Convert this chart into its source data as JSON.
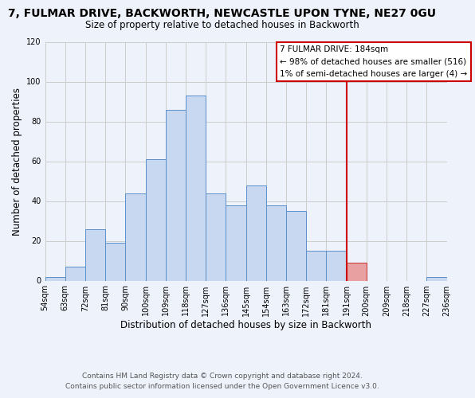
{
  "title": "7, FULMAR DRIVE, BACKWORTH, NEWCASTLE UPON TYNE, NE27 0GU",
  "subtitle": "Size of property relative to detached houses in Backworth",
  "xlabel": "Distribution of detached houses by size in Backworth",
  "ylabel": "Number of detached properties",
  "bar_labels": [
    "54sqm",
    "63sqm",
    "72sqm",
    "81sqm",
    "90sqm",
    "100sqm",
    "109sqm",
    "118sqm",
    "127sqm",
    "136sqm",
    "145sqm",
    "154sqm",
    "163sqm",
    "172sqm",
    "181sqm",
    "191sqm",
    "200sqm",
    "209sqm",
    "218sqm",
    "227sqm",
    "236sqm"
  ],
  "bar_values": [
    2,
    7,
    26,
    19,
    44,
    61,
    86,
    93,
    44,
    38,
    48,
    38,
    35,
    15,
    15,
    9,
    0,
    0,
    0,
    2
  ],
  "bar_color": "#c8d8f0",
  "bar_edge_color": "#5b8fc9",
  "highlight_bar_color": "#e8a0a0",
  "highlight_bar_edge_color": "#c83030",
  "highlight_bar_index": 15,
  "vline_color": "#cc0000",
  "vline_x": 15.0,
  "ylim": [
    0,
    120
  ],
  "yticks": [
    0,
    20,
    40,
    60,
    80,
    100,
    120
  ],
  "grid_color": "#cccccc",
  "background_color": "#eef2fb",
  "annotation_title": "7 FULMAR DRIVE: 184sqm",
  "annotation_line1": "← 98% of detached houses are smaller (516)",
  "annotation_line2": "1% of semi-detached houses are larger (4) →",
  "footer1": "Contains HM Land Registry data © Crown copyright and database right 2024.",
  "footer2": "Contains public sector information licensed under the Open Government Licence v3.0.",
  "title_fontsize": 10,
  "subtitle_fontsize": 8.5,
  "axis_label_fontsize": 8.5,
  "tick_fontsize": 7,
  "annotation_fontsize": 7.5,
  "footer_fontsize": 6.5
}
